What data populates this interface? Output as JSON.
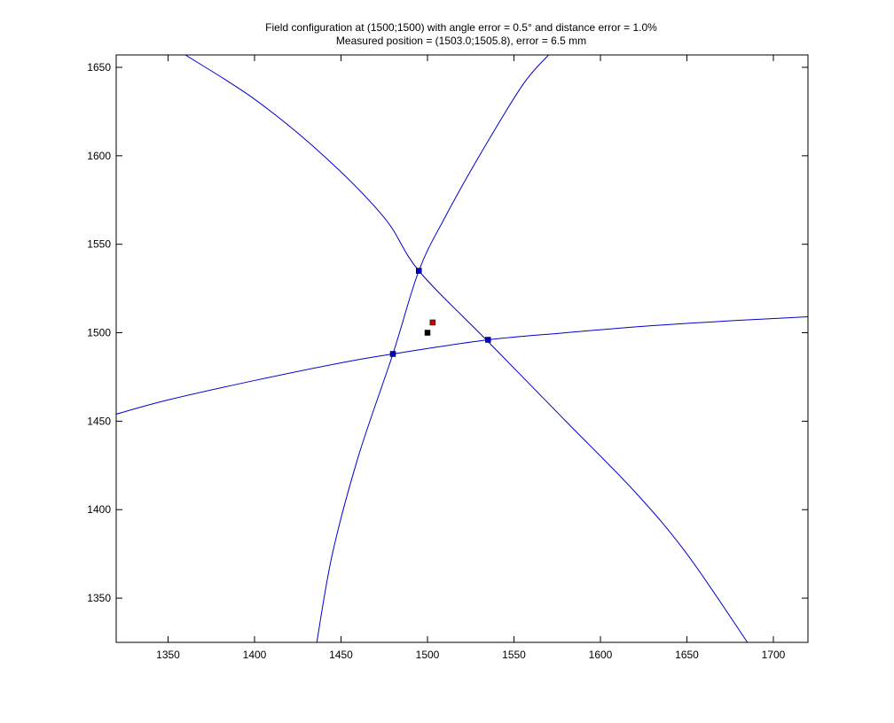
{
  "chart_data": {
    "type": "line",
    "title": "Field configuration at (1500;1500) with angle error = 0.5° and distance error = 1.0%",
    "subtitle": "Measured position = (1503.0;1505.8), error = 6.5 mm",
    "xlabel": "",
    "ylabel": "",
    "xlim": [
      1320,
      1720
    ],
    "ylim": [
      1325,
      1657
    ],
    "xticks": [
      1350,
      1400,
      1450,
      1500,
      1550,
      1600,
      1650,
      1700
    ],
    "yticks": [
      1350,
      1400,
      1450,
      1500,
      1550,
      1600,
      1650
    ],
    "grid": false,
    "line_color": "#0000cc",
    "series": [
      {
        "points": [
          [
            1360,
            1657
          ],
          [
            1400,
            1632
          ],
          [
            1440,
            1600
          ],
          [
            1475,
            1565
          ],
          [
            1495,
            1535
          ],
          [
            1535,
            1495
          ],
          [
            1580,
            1450
          ],
          [
            1620,
            1410
          ],
          [
            1650,
            1375
          ],
          [
            1685,
            1325
          ]
        ]
      },
      {
        "points": [
          [
            1320,
            1454
          ],
          [
            1350,
            1462
          ],
          [
            1400,
            1473
          ],
          [
            1450,
            1483
          ],
          [
            1480,
            1488
          ],
          [
            1535,
            1496
          ],
          [
            1580,
            1500
          ],
          [
            1630,
            1504
          ],
          [
            1680,
            1507
          ],
          [
            1720,
            1509
          ]
        ]
      },
      {
        "points": [
          [
            1436,
            1325
          ],
          [
            1445,
            1375
          ],
          [
            1460,
            1430
          ],
          [
            1480,
            1488
          ],
          [
            1495,
            1535
          ],
          [
            1510,
            1565
          ],
          [
            1530,
            1600
          ],
          [
            1555,
            1640
          ],
          [
            1570,
            1657
          ]
        ]
      }
    ],
    "markers": [
      {
        "x": 1495,
        "y": 1535,
        "color": "#0000cc"
      },
      {
        "x": 1480,
        "y": 1488,
        "color": "#0000cc"
      },
      {
        "x": 1535,
        "y": 1496,
        "color": "#0000cc"
      },
      {
        "x": 1500,
        "y": 1500,
        "color": "#000000"
      },
      {
        "x": 1503.0,
        "y": 1505.8,
        "color": "#cc0000"
      }
    ]
  }
}
